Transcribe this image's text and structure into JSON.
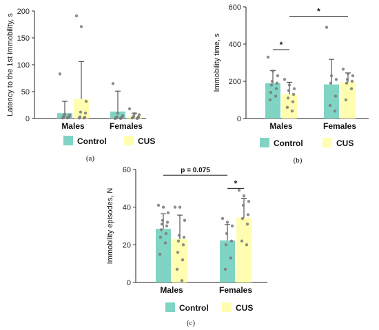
{
  "colors": {
    "control": "#80d4c4",
    "cus": "#fffeb0",
    "point": "#7a7a7a",
    "axis": "#222222"
  },
  "legend": {
    "items": [
      "Control",
      "CUS"
    ]
  },
  "chart_data": [
    {
      "type": "bar",
      "panel_label": "(a)",
      "ylabel": "Latency to the 1st immobility, s",
      "ylim": [
        0,
        200
      ],
      "yticks": [
        0,
        50,
        100,
        150,
        200
      ],
      "categories": [
        "Males",
        "Females"
      ],
      "series": [
        {
          "name": "Control",
          "values": [
            10,
            13
          ],
          "err_up": [
            32,
            51
          ],
          "points": [
            [
              83,
              8,
              6,
              5,
              3,
              2,
              2,
              1,
              1
            ],
            [
              65,
              10,
              5,
              3,
              2,
              1,
              1,
              1,
              0,
              0
            ]
          ]
        },
        {
          "name": "CUS",
          "values": [
            36,
            4
          ],
          "err_up": [
            106,
            10
          ],
          "points": [
            [
              191,
              171,
              32,
              12,
              10,
              3,
              2,
              1,
              1
            ],
            [
              18,
              9,
              7,
              4,
              3,
              2,
              1,
              1,
              0
            ]
          ]
        }
      ],
      "annotations": [],
      "legend_position": "bottom"
    },
    {
      "type": "bar",
      "panel_label": "(b)",
      "ylabel": "Immobility time, s",
      "ylim": [
        0,
        600
      ],
      "yticks": [
        0,
        200,
        400,
        600
      ],
      "categories": [
        "Males",
        "Females"
      ],
      "series": [
        {
          "name": "Control",
          "values": [
            190,
            183
          ],
          "err_up": [
            258,
            318
          ],
          "points": [
            [
              330,
              255,
              230,
              200,
              190,
              180,
              160,
              140,
              120,
              100
            ],
            [
              490,
              230,
              210,
              190,
              120,
              70,
              40
            ]
          ]
        },
        {
          "name": "CUS",
          "values": [
            130,
            195
          ],
          "err_up": [
            195,
            245
          ],
          "points": [
            [
              210,
              180,
              160,
              150,
              130,
              110,
              90,
              60,
              40
            ],
            [
              265,
              240,
              230,
              210,
              200,
              190,
              160,
              100
            ]
          ]
        }
      ],
      "annotations": [
        {
          "text": "*",
          "from": [
            "Males",
            "Control"
          ],
          "to": [
            "Males",
            "CUS"
          ]
        },
        {
          "text": "*",
          "from": [
            "Males",
            "CUS"
          ],
          "to": [
            "Females",
            "CUS"
          ]
        }
      ],
      "legend_position": "bottom"
    },
    {
      "type": "bar",
      "panel_label": "(c)",
      "ylabel": "Immobility episodes, N",
      "ylim": [
        0,
        60
      ],
      "yticks": [
        0,
        20,
        40,
        60
      ],
      "categories": [
        "Males",
        "Females"
      ],
      "series": [
        {
          "name": "Control",
          "values": [
            28.5,
            22.3
          ],
          "err_up": [
            36.5,
            30.8
          ],
          "points": [
            [
              41,
              40,
              37,
              33,
              32,
              31,
              30,
              28,
              26,
              24,
              21,
              15
            ],
            [
              34,
              32,
              30,
              26,
              22,
              20,
              13,
              7
            ]
          ]
        },
        {
          "name": "CUS",
          "values": [
            23,
            34.5
          ],
          "err_up": [
            35.8,
            44.5
          ],
          "points": [
            [
              40,
              40,
              33,
              25,
              24,
              22,
              20,
              16,
              12,
              7,
              1
            ],
            [
              49,
              46,
              43,
              41,
              36,
              34,
              31,
              22,
              20
            ]
          ]
        }
      ],
      "annotations": [
        {
          "text": "p = 0.075",
          "from": [
            "Males",
            "Control"
          ],
          "to": [
            "Females",
            "Control"
          ]
        },
        {
          "text": "*",
          "from": [
            "Females",
            "Control"
          ],
          "to": [
            "Females",
            "CUS"
          ]
        }
      ],
      "legend_position": "bottom"
    }
  ]
}
